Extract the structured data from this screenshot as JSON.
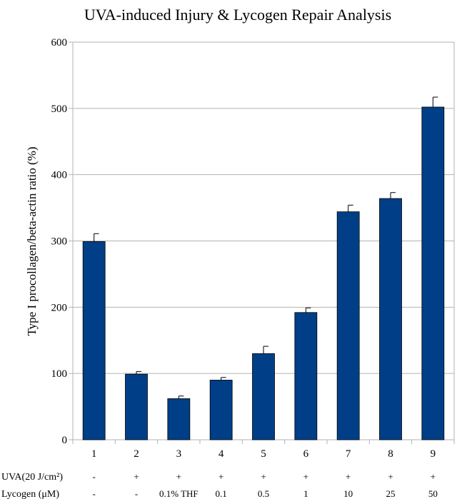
{
  "chart_data": {
    "type": "bar",
    "title": "UVA-induced Injury & Lycogen Repair Analysis",
    "ylabel": "Type I procollagen/beta-actin ratio (%)",
    "xlabel": "",
    "ylim": [
      0,
      600
    ],
    "yticks": [
      0,
      100,
      200,
      300,
      400,
      500,
      600
    ],
    "grid": true,
    "legend": "none",
    "categories": [
      "1",
      "2",
      "3",
      "4",
      "5",
      "6",
      "7",
      "8",
      "9"
    ],
    "values": [
      299,
      99,
      62,
      90,
      130,
      192,
      344,
      364,
      502
    ],
    "errors": [
      12,
      4,
      4,
      4,
      11,
      7,
      10,
      9,
      15
    ],
    "bar_color": "#003f87",
    "treatment_rows": [
      {
        "label": "UVA(20 J/cm²)",
        "values": [
          "-",
          "+",
          "+",
          "+",
          "+",
          "+",
          "+",
          "+",
          "+"
        ]
      },
      {
        "label": "Lycogen (μM)",
        "values": [
          "-",
          "-",
          "0.1% THF",
          "0.1",
          "0.5",
          "1",
          "10",
          "25",
          "50"
        ]
      }
    ]
  }
}
